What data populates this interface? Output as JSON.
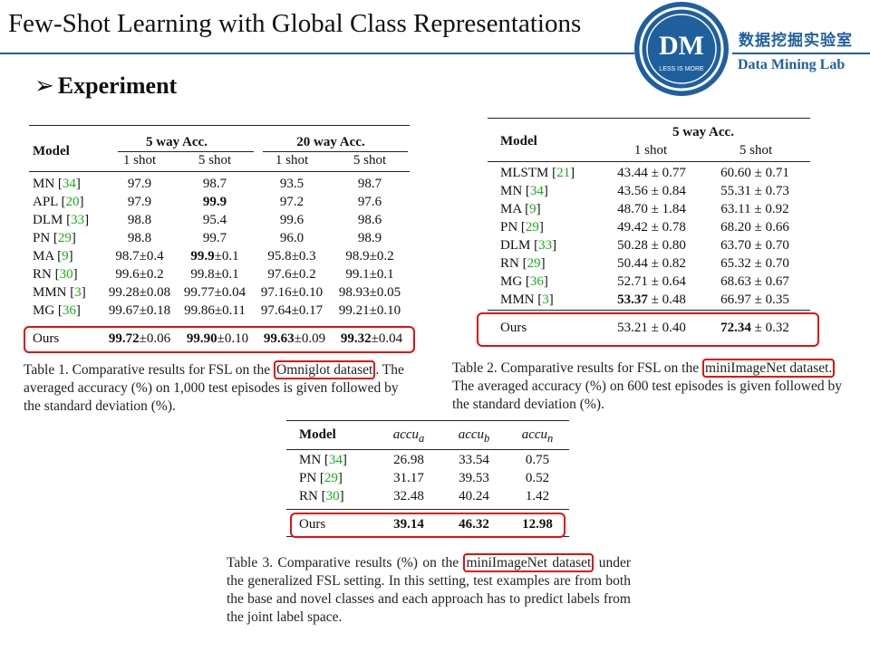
{
  "header": {
    "title": "Few-Shot Learning with Global Class Representations",
    "logo_text": "DM",
    "logo_tagline": "LESS IS MORE",
    "lab_cn": "数据挖掘实验室",
    "lab_en": "Data Mining Lab"
  },
  "section": {
    "heading": "Experiment"
  },
  "table1": {
    "col_model": "Model",
    "group1": "5 way Acc.",
    "group2": "20 way Acc.",
    "sub": [
      "1 shot",
      "5 shot",
      "1 shot",
      "5 shot"
    ],
    "rows": [
      {
        "name": "MN [",
        "ref": "34",
        "v": [
          "97.9",
          "98.7",
          "93.5",
          "98.7"
        ]
      },
      {
        "name": "APL [",
        "ref": "20",
        "v": [
          "97.9",
          "99.9",
          "97.2",
          "97.6"
        ]
      },
      {
        "name": "DLM [",
        "ref": "33",
        "v": [
          "98.8",
          "95.4",
          "99.6",
          "98.6"
        ]
      },
      {
        "name": "PN [",
        "ref": "29",
        "v": [
          "98.8",
          "99.7",
          "96.0",
          "98.9"
        ]
      },
      {
        "name": "MA [",
        "ref": "9",
        "v": [
          "98.7±0.4",
          "99.9±0.1",
          "95.8±0.3",
          "98.9±0.2"
        ]
      },
      {
        "name": "RN [",
        "ref": "30",
        "v": [
          "99.6±0.2",
          "99.8±0.1",
          "97.6±0.2",
          "99.1±0.1"
        ]
      },
      {
        "name": "MMN [",
        "ref": "3",
        "v": [
          "99.28±0.08",
          "99.77±0.04",
          "97.16±0.10",
          "98.93±0.05"
        ]
      },
      {
        "name": "MG [",
        "ref": "36",
        "v": [
          "99.67±0.18",
          "99.86±0.11",
          "97.64±0.17",
          "99.21±0.10"
        ]
      }
    ],
    "bold_apl_5shot": "99.9",
    "bold_ma_5shot_main": "99.9",
    "bold_ma_5shot_rest": "±0.1",
    "ours": {
      "name": "Ours",
      "v_bold": [
        "99.72",
        "99.90",
        "99.63",
        "99.32"
      ],
      "v_rest": [
        "±0.06",
        "±0.10",
        "±0.09",
        "±0.04"
      ]
    },
    "caption_pre": "Table 1. Comparative results for FSL on the ",
    "caption_box": "Omniglot dataset",
    "caption_post": ". The averaged accuracy (%) on 1,000 test episodes is given followed by the standard deviation (%)."
  },
  "table2": {
    "col_model": "Model",
    "group": "5 way Acc.",
    "sub": [
      "1 shot",
      "5 shot"
    ],
    "rows": [
      {
        "name": "MLSTM [",
        "ref": "21",
        "v": [
          "43.44 ± 0.77",
          "60.60 ± 0.71"
        ]
      },
      {
        "name": "MN [",
        "ref": "34",
        "v": [
          "43.56 ± 0.84",
          "55.31 ± 0.73"
        ]
      },
      {
        "name": "MA [",
        "ref": "9",
        "v": [
          "48.70 ± 1.84",
          "63.11 ± 0.92"
        ]
      },
      {
        "name": "PN [",
        "ref": "29",
        "v": [
          "49.42 ± 0.78",
          "68.20 ± 0.66"
        ]
      },
      {
        "name": "DLM [",
        "ref": "33",
        "v": [
          "50.28 ± 0.80",
          "63.70 ± 0.70"
        ]
      },
      {
        "name": "RN [",
        "ref": "29",
        "v": [
          "50.44 ± 0.82",
          "65.32 ± 0.70"
        ]
      },
      {
        "name": "MG [",
        "ref": "36",
        "v": [
          "52.71 ± 0.64",
          "68.63 ± 0.67"
        ]
      },
      {
        "name": "MMN [",
        "ref": "3",
        "v": [
          "53.37 ± 0.48",
          "66.97 ± 0.35"
        ]
      }
    ],
    "mmn_bold": "53.37",
    "mmn_rest": " ± 0.48",
    "ours": {
      "name": "Ours",
      "v1": "53.21 ± 0.40",
      "v2_bold": "72.34",
      "v2_rest": " ± 0.32"
    },
    "caption_pre": "Table 2. Comparative results for FSL on the ",
    "caption_box": "miniImageNet dataset.",
    "caption_post": "The averaged accuracy (%) on 600 test episodes is given followed by the standard deviation (%)."
  },
  "table3": {
    "cols": [
      "Model",
      "accu",
      "accu",
      "accu"
    ],
    "subs": [
      "a",
      "b",
      "n"
    ],
    "rows": [
      {
        "name": "MN [",
        "ref": "34",
        "v": [
          "26.98",
          "33.54",
          "0.75"
        ]
      },
      {
        "name": "PN [",
        "ref": "29",
        "v": [
          "31.17",
          "39.53",
          "0.52"
        ]
      },
      {
        "name": "RN [",
        "ref": "30",
        "v": [
          "32.48",
          "40.24",
          "1.42"
        ]
      }
    ],
    "ours": {
      "name": "Ours",
      "v": [
        "39.14",
        "46.32",
        "12.98"
      ]
    },
    "caption_pre": "Table 3. Comparative results (%) on the ",
    "caption_box": "miniImageNet dataset",
    "caption_post": " under the generalized FSL setting. In this setting, test examples are from both the base and novel classes and each approach has to predict labels from the joint label space."
  }
}
